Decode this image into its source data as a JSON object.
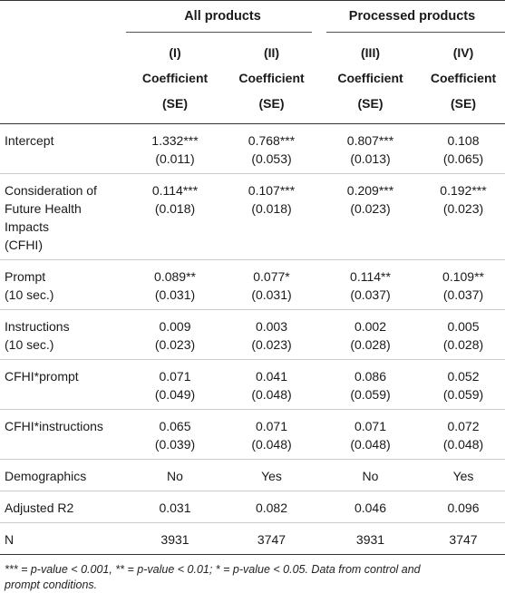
{
  "groups": {
    "all": "All products",
    "processed": "Processed products"
  },
  "columns": [
    {
      "num": "(I)",
      "label": "Coefficient",
      "se": "(SE)"
    },
    {
      "num": "(II)",
      "label": "Coefficient",
      "se": "(SE)"
    },
    {
      "num": "(III)",
      "label": "Coefficient",
      "se": "(SE)"
    },
    {
      "num": "(IV)",
      "label": "Coefficient",
      "se": "(SE)"
    }
  ],
  "rows": [
    {
      "label": [
        "Intercept"
      ],
      "values": [
        [
          "1.332***",
          "(0.011)"
        ],
        [
          "0.768***",
          "(0.053)"
        ],
        [
          "0.807***",
          "(0.013)"
        ],
        [
          "0.108",
          "(0.065)"
        ]
      ]
    },
    {
      "label": [
        "Consideration of",
        "Future Health",
        "Impacts",
        "(CFHI)"
      ],
      "values": [
        [
          "0.114***",
          "(0.018)"
        ],
        [
          "0.107***",
          "(0.018)"
        ],
        [
          "0.209***",
          "(0.023)"
        ],
        [
          "0.192***",
          "(0.023)"
        ]
      ]
    },
    {
      "label": [
        "Prompt",
        "(10 sec.)"
      ],
      "values": [
        [
          "0.089**",
          "(0.031)"
        ],
        [
          "0.077*",
          "(0.031)"
        ],
        [
          "0.114**",
          "(0.037)"
        ],
        [
          "0.109**",
          "(0.037)"
        ]
      ]
    },
    {
      "label": [
        "Instructions",
        "(10 sec.)"
      ],
      "values": [
        [
          "0.009",
          "(0.023)"
        ],
        [
          "0.003",
          "(0.023)"
        ],
        [
          "0.002",
          "(0.028)"
        ],
        [
          "0.005",
          "(0.028)"
        ]
      ]
    },
    {
      "label": [
        "CFHI*prompt"
      ],
      "values": [
        [
          "0.071",
          "(0.049)"
        ],
        [
          "0.041",
          "(0.048)"
        ],
        [
          "0.086",
          "(0.059)"
        ],
        [
          "0.052",
          "(0.059)"
        ]
      ]
    },
    {
      "label": [
        "CFHI*instructions"
      ],
      "values": [
        [
          "0.065",
          "(0.039)"
        ],
        [
          "0.071",
          "(0.048)"
        ],
        [
          "0.071",
          "(0.048)"
        ],
        [
          "0.072",
          "(0.048)"
        ]
      ]
    },
    {
      "label": [
        "Demographics"
      ],
      "values": [
        [
          "No"
        ],
        [
          "Yes"
        ],
        [
          "No"
        ],
        [
          "Yes"
        ]
      ]
    },
    {
      "label": [
        "Adjusted R2"
      ],
      "values": [
        [
          "0.031"
        ],
        [
          "0.082"
        ],
        [
          "0.046"
        ],
        [
          "0.096"
        ]
      ]
    },
    {
      "label": [
        "N"
      ],
      "values": [
        [
          "3931"
        ],
        [
          "3747"
        ],
        [
          "3931"
        ],
        [
          "3747"
        ]
      ]
    }
  ],
  "note": {
    "line1": "*** = p-value < 0.001, ** = p-value < 0.01; * = p-value < 0.05. Data from control and",
    "line2": "prompt conditions."
  }
}
